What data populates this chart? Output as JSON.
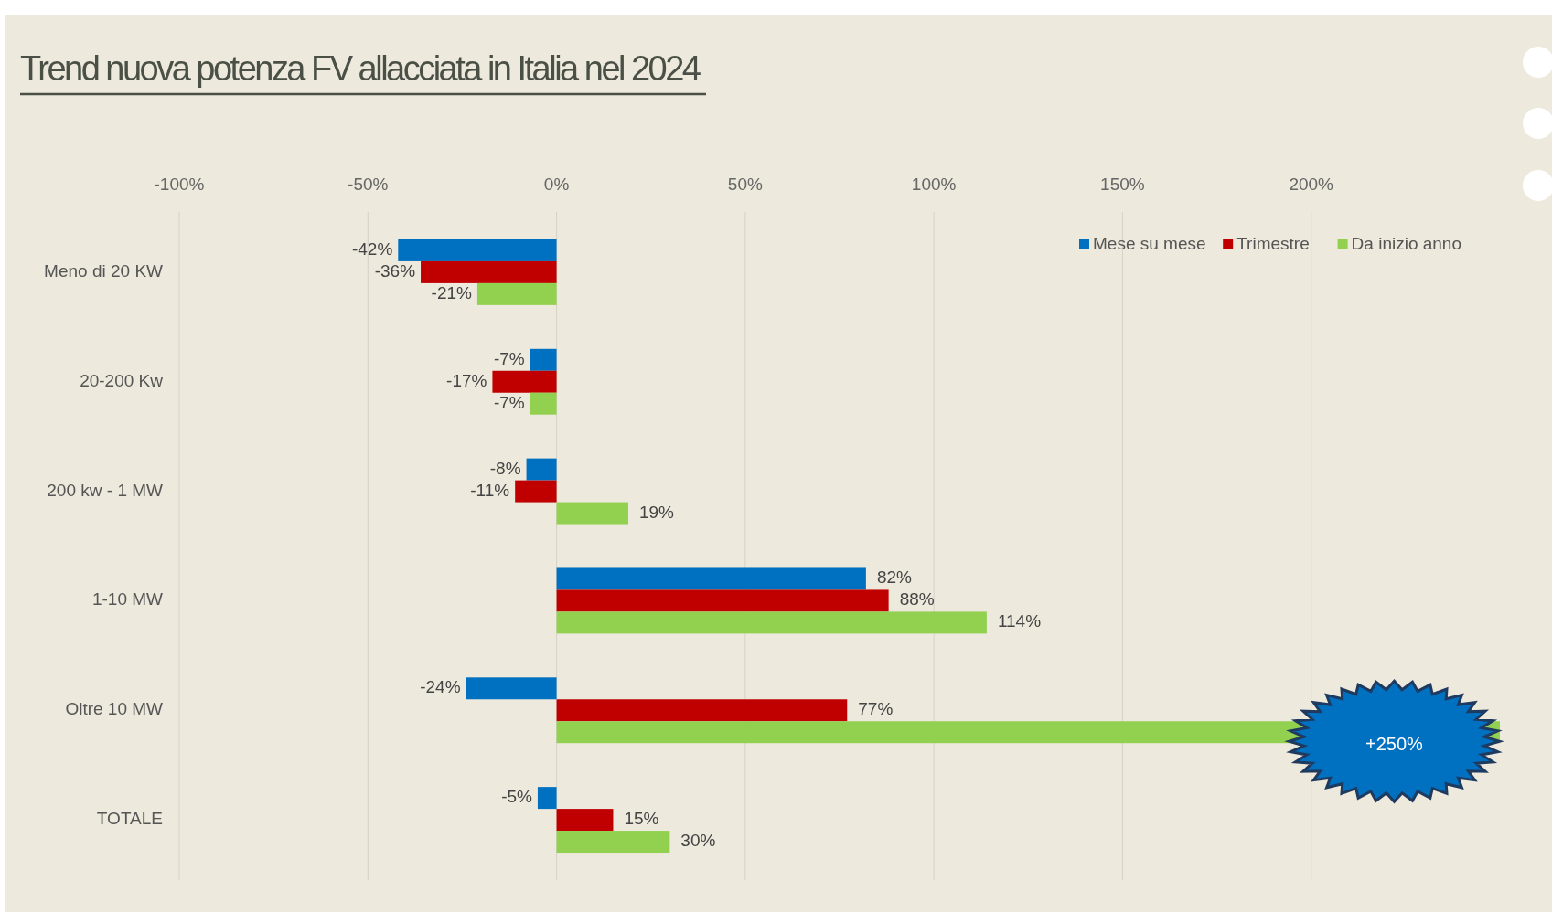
{
  "chart_data": {
    "type": "bar",
    "orientation": "horizontal",
    "title": "Trend nuova potenza FV allacciata in Italia nel 2024",
    "categories": [
      "Meno di 20 KW",
      "20-200 Kw",
      "200 kw - 1 MW",
      "1-10 MW",
      "Oltre 10 MW",
      "TOTALE"
    ],
    "series": [
      {
        "name": "Mese su mese",
        "color": "#0070c0",
        "values": [
          -42,
          -7,
          -8,
          82,
          -24,
          -5
        ],
        "value_labels": [
          "-42%",
          "-7%",
          "-8%",
          "82%",
          "-24%",
          "-5%"
        ]
      },
      {
        "name": "Trimestre",
        "color": "#c00000",
        "values": [
          -36,
          -17,
          -11,
          88,
          77,
          15
        ],
        "value_labels": [
          "-36%",
          "-17%",
          "-11%",
          "88%",
          "77%",
          "15%"
        ]
      },
      {
        "name": "Da inizio anno",
        "color": "#92d050",
        "values": [
          -21,
          -7,
          19,
          114,
          250,
          30
        ],
        "value_labels": [
          "-21%",
          "-7%",
          "19%",
          "114%",
          "+250%",
          "30%"
        ]
      }
    ],
    "xlim": [
      -100,
      250
    ],
    "xticks": [
      {
        "value": -100,
        "label": "-100%"
      },
      {
        "value": -50,
        "label": "-50%"
      },
      {
        "value": 0,
        "label": "0%"
      },
      {
        "value": 50,
        "label": "50%"
      },
      {
        "value": 100,
        "label": "100%"
      },
      {
        "value": 150,
        "label": "150%"
      },
      {
        "value": 200,
        "label": "200%"
      }
    ],
    "grid": "x",
    "legend": "top right"
  }
}
